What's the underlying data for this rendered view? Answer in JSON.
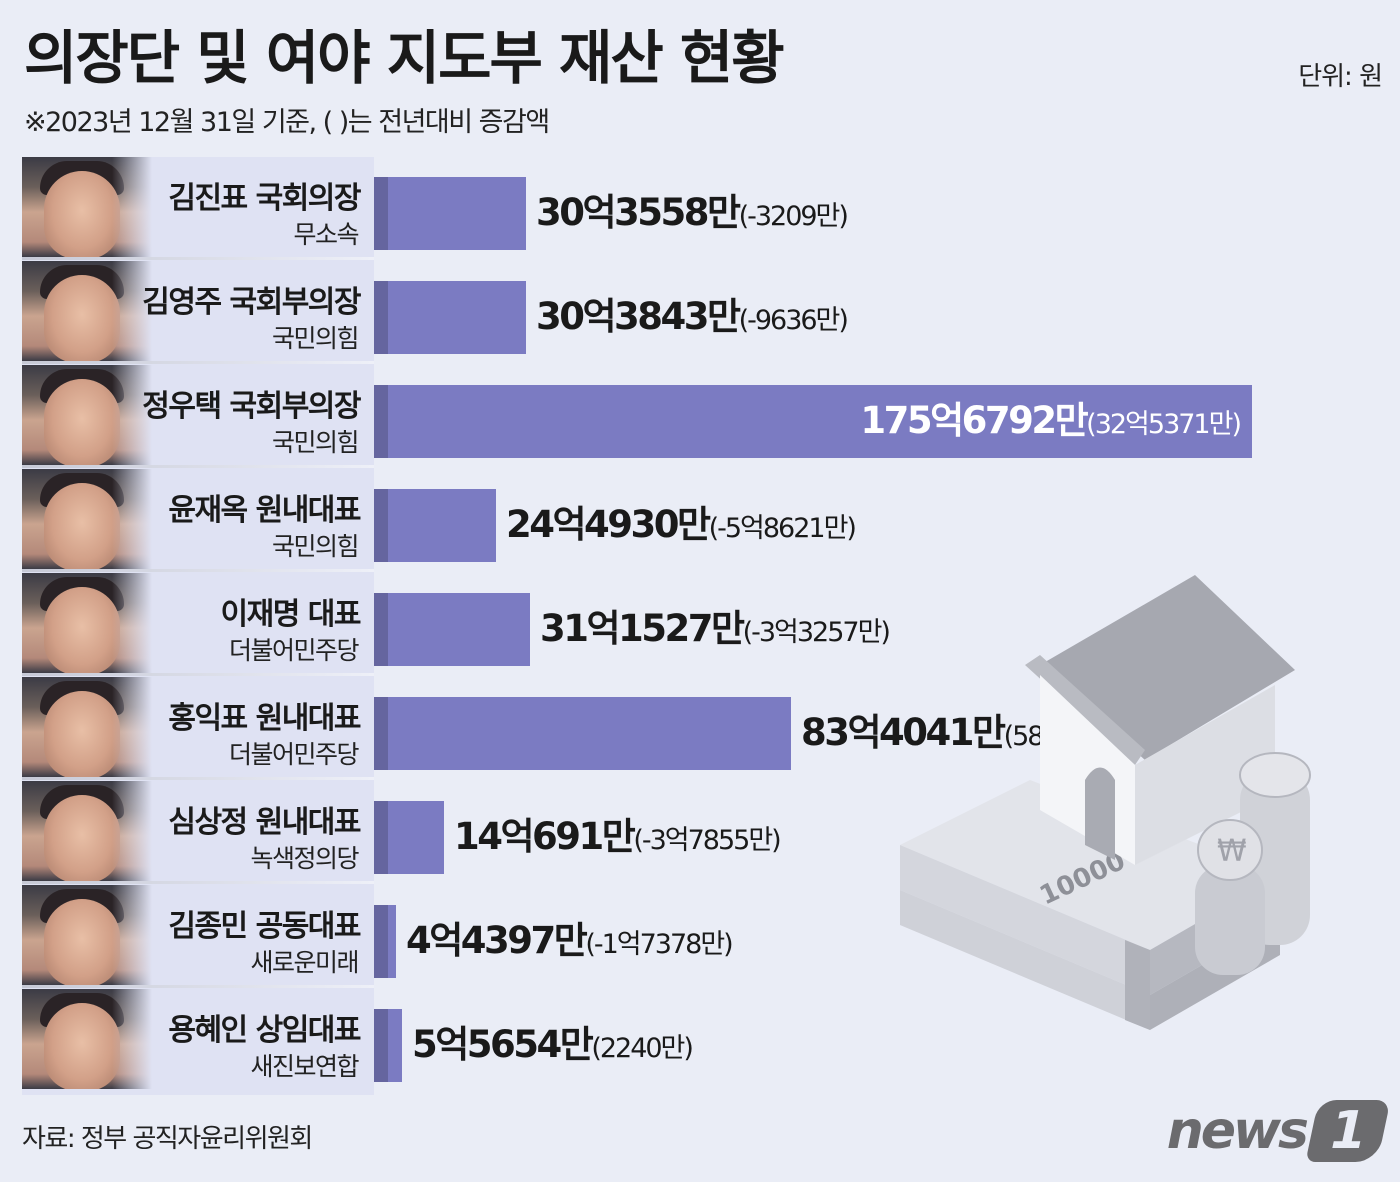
{
  "header": {
    "title": "의장단 및 여야 지도부 재산 현황",
    "subtitle": "※2023년 12월 31일 기준, ( )는 전년대비 증감액",
    "unit": "단위: 원"
  },
  "colors": {
    "background": "#eaedf6",
    "bar": "#7b7bc2",
    "bar_shade": "#65659f",
    "panel": "#dfe2f3",
    "text": "#1a1a1a"
  },
  "rows": [
    {
      "name": "김진표 국회의장",
      "party": "무소속",
      "asset": "30억3558만",
      "change": "(-3209만)"
    },
    {
      "name": "김영주 국회부의장",
      "party": "국민의힘",
      "asset": "30억3843만",
      "change": "(-9636만)"
    },
    {
      "name": "정우택 국회부의장",
      "party": "국민의힘",
      "asset": "175억6792만",
      "change": "(32억5371만)"
    },
    {
      "name": "윤재옥 원내대표",
      "party": "국민의힘",
      "asset": "24억4930만",
      "change": "(-5억8621만)"
    },
    {
      "name": "이재명 대표",
      "party": "더불어민주당",
      "asset": "31억1527만",
      "change": "(-3억3257만)"
    },
    {
      "name": "홍익표 원내대표",
      "party": "더불어민주당",
      "asset": "83억4041만",
      "change": "(5838만)"
    },
    {
      "name": "심상정 원내대표",
      "party": "녹색정의당",
      "asset": "14억691만",
      "change": "(-3억7855만)"
    },
    {
      "name": "김종민 공동대표",
      "party": "새로운미래",
      "asset": "4억4397만",
      "change": "(-1억7378만)"
    },
    {
      "name": "용혜인 상임대표",
      "party": "새진보연합",
      "asset": "5억5654만",
      "change": "(2240만)"
    }
  ],
  "illustration": {
    "banknote_label": "10000",
    "coin_symbol": "₩"
  },
  "footer": {
    "source": "자료: 정부 공직자윤리위원회",
    "logo_word": "news",
    "logo_number": "1"
  },
  "chart_data": {
    "type": "bar",
    "orientation": "horizontal",
    "title": "의장단 및 여야 지도부 재산 현황",
    "subtitle": "※2023년 12월 31일 기준, ( )는 전년대비 증감액",
    "unit": "원",
    "categories": [
      "김진표 국회의장 (무소속)",
      "김영주 국회부의장 (국민의힘)",
      "정우택 국회부의장 (국민의힘)",
      "윤재옥 원내대표 (국민의힘)",
      "이재명 대표 (더불어민주당)",
      "홍익표 원내대표 (더불어민주당)",
      "심상정 원내대표 (녹색정의당)",
      "김종민 공동대표 (새로운미래)",
      "용혜인 상임대표 (새진보연합)"
    ],
    "series": [
      {
        "name": "재산 (만원)",
        "values": [
          303558,
          303843,
          1756792,
          244930,
          311527,
          834041,
          140691,
          44397,
          55654
        ]
      },
      {
        "name": "전년대비 증감액 (만원)",
        "values": [
          -3209,
          -9636,
          325371,
          -58621,
          -33257,
          5838,
          -37855,
          -17378,
          2240
        ]
      }
    ],
    "labels": [
      "30억3558만",
      "30억3843만",
      "175억6792만",
      "24억4930만",
      "31억1527만",
      "83억4041만",
      "14억691만",
      "4억4397만",
      "5억5654만"
    ],
    "change_labels": [
      "(-3209만)",
      "(-9636만)",
      "(32억5371만)",
      "(-5억8621만)",
      "(-3억3257만)",
      "(5838만)",
      "(-3억7855만)",
      "(-1억7378만)",
      "(2240만)"
    ],
    "xlabel": "",
    "ylabel": "",
    "grid": false,
    "legend": "none",
    "source": "자료: 정부 공직자윤리위원회"
  }
}
